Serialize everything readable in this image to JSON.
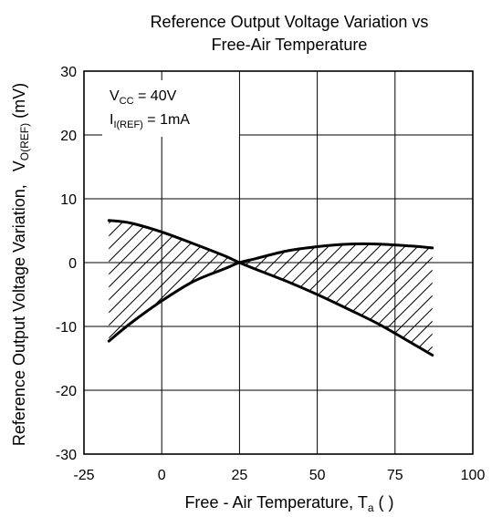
{
  "chart_data": {
    "type": "line",
    "title_lines": [
      "Reference Output Voltage Variation vs",
      "Free-Air Temperature"
    ],
    "xlabel": "Free - Air Temperature, T",
    "xlabel_sub": "a",
    "xlabel_unit": " (     )",
    "ylabel": "Reference Output Voltage Variation,",
    "ylabel_main": "V",
    "ylabel_sub": "O(REF)",
    "ylabel_unit": " (mV)",
    "xlim": [
      -25,
      100
    ],
    "ylim": [
      -30,
      30
    ],
    "x_ticks": [
      "-25",
      "0",
      "25",
      "50",
      "75",
      "100"
    ],
    "y_ticks": [
      "30",
      "20",
      "10",
      "0",
      "-10",
      "-20",
      "-30"
    ],
    "grid": true,
    "shaded_region": "hatched area between upper and lower bound curves",
    "annotations": [
      {
        "main": "V",
        "sub": "CC",
        "rest": " = 40V"
      },
      {
        "main": "I",
        "sub": "I(REF)",
        "rest": " = 1mA"
      }
    ],
    "series": [
      {
        "x": [
          -17,
          -10,
          0,
          10,
          20,
          25,
          30,
          40,
          50,
          60,
          70,
          80,
          87
        ],
        "y": [
          -12.3,
          -9.5,
          -6,
          -3,
          -1,
          0,
          0.6,
          1.8,
          2.5,
          2.9,
          2.9,
          2.6,
          2.3
        ]
      },
      {
        "x": [
          -17,
          -10,
          0,
          10,
          20,
          25,
          30,
          40,
          50,
          60,
          70,
          80,
          87
        ],
        "y": [
          6.6,
          6.2,
          4.8,
          3.0,
          1.1,
          0,
          -1.0,
          -2.9,
          -5.0,
          -7.3,
          -9.7,
          -12.5,
          -14.5
        ]
      }
    ]
  }
}
